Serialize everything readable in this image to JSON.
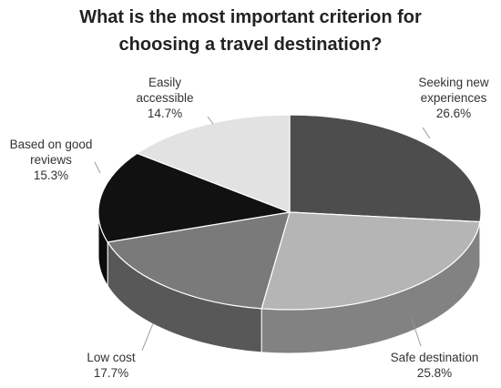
{
  "chart_data": {
    "type": "pie",
    "title": [
      "What is the most important criterion for",
      "choosing a travel destination?"
    ],
    "slices": [
      {
        "label": [
          "Seeking new",
          "experiences"
        ],
        "value": "26.6%",
        "pct": 26.6,
        "color": "#4d4d4d"
      },
      {
        "label": [
          "Safe destination"
        ],
        "value": "25.8%",
        "pct": 25.8,
        "color": "#b5b5b5"
      },
      {
        "label": [
          "Low cost"
        ],
        "value": "17.7%",
        "pct": 17.7,
        "color": "#7a7a7a"
      },
      {
        "label": [
          "Based on good",
          "reviews"
        ],
        "value": "15.3%",
        "pct": 15.3,
        "color": "#111111"
      },
      {
        "label": [
          "Easily",
          "accessible"
        ],
        "value": "14.7%",
        "pct": 14.7,
        "color": "#e2e2e2"
      }
    ],
    "legend": "none",
    "style": "3d-pie"
  }
}
